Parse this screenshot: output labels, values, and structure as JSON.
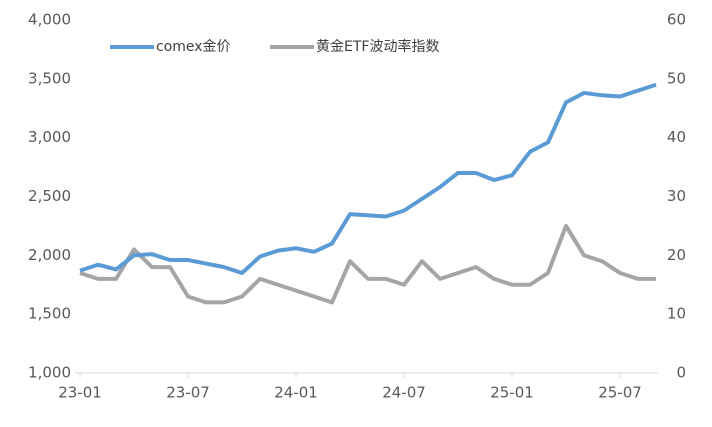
{
  "chart_data": {
    "type": "line",
    "x": [
      "23-01",
      null,
      null,
      null,
      null,
      null,
      "23-07",
      null,
      null,
      null,
      null,
      null,
      "24-01",
      null,
      null,
      null,
      null,
      null,
      "24-07",
      null,
      null,
      null,
      null,
      null,
      "25-01",
      null,
      null,
      null,
      null,
      null,
      "25-07",
      null,
      null
    ],
    "series": [
      {
        "name": "comex金价",
        "color": "#5b9bd5",
        "axis": "y",
        "values": [
          1870,
          1920,
          1880,
          2000,
          2010,
          1960,
          1960,
          1930,
          1900,
          1850,
          1990,
          2040,
          2060,
          2030,
          2100,
          2350,
          2340,
          2330,
          2380,
          2480,
          2580,
          2700,
          2700,
          2640,
          2680,
          2880,
          2960,
          3300,
          3380,
          3360,
          3350,
          3400,
          3450
        ]
      },
      {
        "name": "黄金ETF波动率指数",
        "color": "#a5a5a5",
        "axis": "y2",
        "values": [
          17,
          16,
          16,
          21,
          18,
          18,
          13,
          12,
          12,
          13,
          16,
          15,
          14,
          13,
          12,
          19,
          16,
          16,
          15,
          19,
          16,
          17,
          18,
          16,
          15,
          15,
          17,
          25,
          20,
          19,
          17,
          16,
          16
        ]
      }
    ],
    "ylim": [
      1000,
      4000
    ],
    "yticks": [
      {
        "value": 1000,
        "label": "1,000"
      },
      {
        "value": 1500,
        "label": "1,500"
      },
      {
        "value": 2000,
        "label": "2,000"
      },
      {
        "value": 2500,
        "label": "2,500"
      },
      {
        "value": 3000,
        "label": "3,000"
      },
      {
        "value": 3500,
        "label": "3,500"
      },
      {
        "value": 4000,
        "label": "4,000"
      }
    ],
    "y2lim": [
      0,
      60
    ],
    "y2ticks": [
      0,
      10,
      20,
      30,
      40,
      50,
      60
    ],
    "grid": false,
    "legend": "top"
  }
}
